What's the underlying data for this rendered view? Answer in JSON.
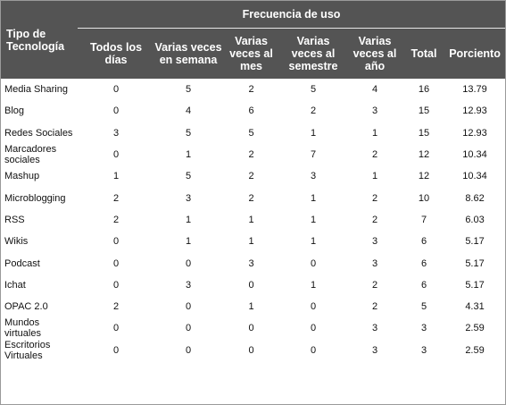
{
  "table": {
    "header_tipo": "Tipo de Tecnología",
    "header_frecuencia": "Frecuencia de uso",
    "columns": [
      "Todos los días",
      "Varias veces en semana",
      "Varias veces al mes",
      "Varias veces al semestre",
      "Varias veces al año",
      "Total",
      "Porciento"
    ],
    "rows": [
      {
        "name": "Media Sharing",
        "values": [
          "0",
          "5",
          "2",
          "5",
          "4",
          "16",
          "13.79"
        ]
      },
      {
        "name": "Blog",
        "values": [
          "0",
          "4",
          "6",
          "2",
          "3",
          "15",
          "12.93"
        ]
      },
      {
        "name": "Redes Sociales",
        "values": [
          "3",
          "5",
          "5",
          "1",
          "1",
          "15",
          "12.93"
        ]
      },
      {
        "name": "Marcadores sociales",
        "values": [
          "0",
          "1",
          "2",
          "7",
          "2",
          "12",
          "10.34"
        ]
      },
      {
        "name": "Mashup",
        "values": [
          "1",
          "5",
          "2",
          "3",
          "1",
          "12",
          "10.34"
        ]
      },
      {
        "name": "Microblogging",
        "values": [
          "2",
          "3",
          "2",
          "1",
          "2",
          "10",
          "8.62"
        ]
      },
      {
        "name": "RSS",
        "values": [
          "2",
          "1",
          "1",
          "1",
          "2",
          "7",
          "6.03"
        ]
      },
      {
        "name": "Wikis",
        "values": [
          "0",
          "1",
          "1",
          "1",
          "3",
          "6",
          "5.17"
        ]
      },
      {
        "name": "Podcast",
        "values": [
          "0",
          "0",
          "3",
          "0",
          "3",
          "6",
          "5.17"
        ]
      },
      {
        "name": "Ichat",
        "values": [
          "0",
          "3",
          "0",
          "1",
          "2",
          "6",
          "5.17"
        ]
      },
      {
        "name": "OPAC 2.0",
        "values": [
          "2",
          "0",
          "1",
          "0",
          "2",
          "5",
          "4.31"
        ]
      },
      {
        "name": "Mundos virtuales",
        "values": [
          "0",
          "0",
          "0",
          "0",
          "3",
          "3",
          "2.59"
        ]
      },
      {
        "name": "Escritorios Virtuales",
        "values": [
          "0",
          "0",
          "0",
          "0",
          "3",
          "3",
          "2.59"
        ]
      }
    ]
  }
}
